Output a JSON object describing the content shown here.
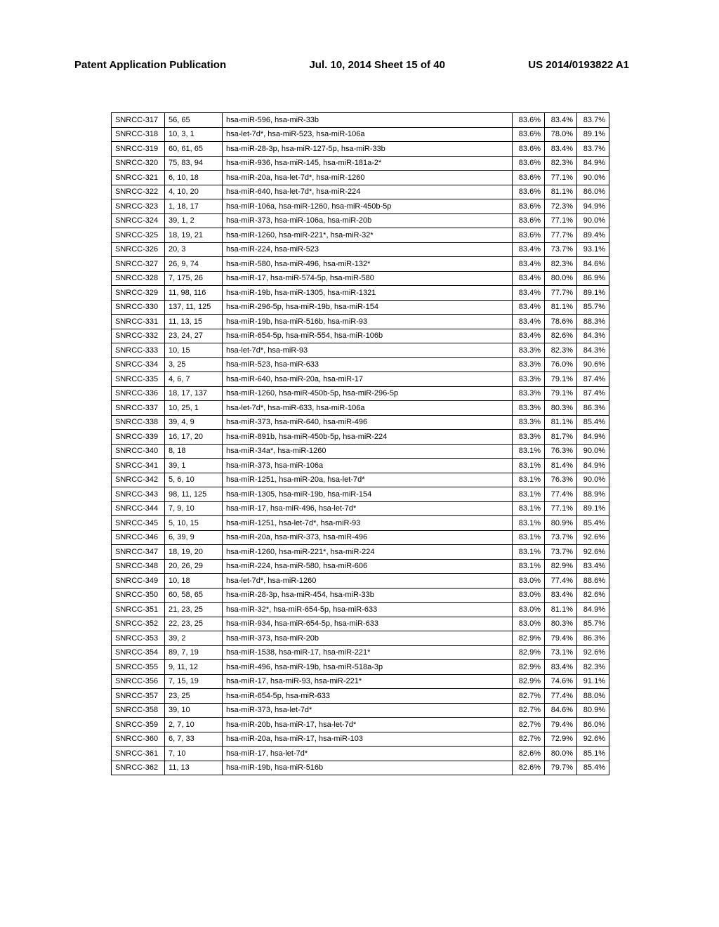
{
  "header": {
    "left": "Patent Application Publication",
    "center": "Jul. 10, 2014  Sheet 15 of 40",
    "right": "US 2014/0193822 A1"
  },
  "table": {
    "font_size": 11,
    "border_color": "#000000",
    "background_color": "#ffffff",
    "rows": [
      [
        "SNRCC-317",
        "56, 65",
        "hsa-miR-596, hsa-miR-33b",
        "83.6%",
        "83.4%",
        "83.7%"
      ],
      [
        "SNRCC-318",
        "10, 3, 1",
        "hsa-let-7d*, hsa-miR-523, hsa-miR-106a",
        "83.6%",
        "78.0%",
        "89.1%"
      ],
      [
        "SNRCC-319",
        "60, 61, 65",
        "hsa-miR-28-3p, hsa-miR-127-5p, hsa-miR-33b",
        "83.6%",
        "83.4%",
        "83.7%"
      ],
      [
        "SNRCC-320",
        "75, 83, 94",
        "hsa-miR-936, hsa-miR-145, hsa-miR-181a-2*",
        "83.6%",
        "82.3%",
        "84.9%"
      ],
      [
        "SNRCC-321",
        "6, 10, 18",
        "hsa-miR-20a, hsa-let-7d*, hsa-miR-1260",
        "83.6%",
        "77.1%",
        "90.0%"
      ],
      [
        "SNRCC-322",
        "4, 10, 20",
        "hsa-miR-640, hsa-let-7d*, hsa-miR-224",
        "83.6%",
        "81.1%",
        "86.0%"
      ],
      [
        "SNRCC-323",
        "1, 18, 17",
        "hsa-miR-106a, hsa-miR-1260, hsa-miR-450b-5p",
        "83.6%",
        "72.3%",
        "94.9%"
      ],
      [
        "SNRCC-324",
        "39, 1, 2",
        "hsa-miR-373, hsa-miR-106a, hsa-miR-20b",
        "83.6%",
        "77.1%",
        "90.0%"
      ],
      [
        "SNRCC-325",
        "18, 19, 21",
        "hsa-miR-1260, hsa-miR-221*, hsa-miR-32*",
        "83.6%",
        "77.7%",
        "89.4%"
      ],
      [
        "SNRCC-326",
        "20, 3",
        "hsa-miR-224, hsa-miR-523",
        "83.4%",
        "73.7%",
        "93.1%"
      ],
      [
        "SNRCC-327",
        "26, 9, 74",
        "hsa-miR-580, hsa-miR-496, hsa-miR-132*",
        "83.4%",
        "82.3%",
        "84.6%"
      ],
      [
        "SNRCC-328",
        "7, 175, 26",
        "hsa-miR-17, hsa-miR-574-5p, hsa-miR-580",
        "83.4%",
        "80.0%",
        "86.9%"
      ],
      [
        "SNRCC-329",
        "11, 98, 116",
        "hsa-miR-19b, hsa-miR-1305, hsa-miR-1321",
        "83.4%",
        "77.7%",
        "89.1%"
      ],
      [
        "SNRCC-330",
        "137, 11, 125",
        "hsa-miR-296-5p, hsa-miR-19b, hsa-miR-154",
        "83.4%",
        "81.1%",
        "85.7%"
      ],
      [
        "SNRCC-331",
        "11, 13, 15",
        "hsa-miR-19b, hsa-miR-516b, hsa-miR-93",
        "83.4%",
        "78.6%",
        "88.3%"
      ],
      [
        "SNRCC-332",
        "23, 24, 27",
        "hsa-miR-654-5p, hsa-miR-554, hsa-miR-106b",
        "83.4%",
        "82.6%",
        "84.3%"
      ],
      [
        "SNRCC-333",
        "10, 15",
        "hsa-let-7d*, hsa-miR-93",
        "83.3%",
        "82.3%",
        "84.3%"
      ],
      [
        "SNRCC-334",
        "3, 25",
        "hsa-miR-523, hsa-miR-633",
        "83.3%",
        "76.0%",
        "90.6%"
      ],
      [
        "SNRCC-335",
        "4, 6, 7",
        "hsa-miR-640, hsa-miR-20a, hsa-miR-17",
        "83.3%",
        "79.1%",
        "87.4%"
      ],
      [
        "SNRCC-336",
        "18, 17, 137",
        "hsa-miR-1260, hsa-miR-450b-5p, hsa-miR-296-5p",
        "83.3%",
        "79.1%",
        "87.4%"
      ],
      [
        "SNRCC-337",
        "10, 25, 1",
        "hsa-let-7d*, hsa-miR-633, hsa-miR-106a",
        "83.3%",
        "80.3%",
        "86.3%"
      ],
      [
        "SNRCC-338",
        "39, 4, 9",
        "hsa-miR-373, hsa-miR-640, hsa-miR-496",
        "83.3%",
        "81.1%",
        "85.4%"
      ],
      [
        "SNRCC-339",
        "16, 17, 20",
        "hsa-miR-891b, hsa-miR-450b-5p, hsa-miR-224",
        "83.3%",
        "81.7%",
        "84.9%"
      ],
      [
        "SNRCC-340",
        "8, 18",
        "hsa-miR-34a*, hsa-miR-1260",
        "83.1%",
        "76.3%",
        "90.0%"
      ],
      [
        "SNRCC-341",
        "39, 1",
        "hsa-miR-373, hsa-miR-106a",
        "83.1%",
        "81.4%",
        "84.9%"
      ],
      [
        "SNRCC-342",
        "5, 6, 10",
        "hsa-miR-1251, hsa-miR-20a, hsa-let-7d*",
        "83.1%",
        "76.3%",
        "90.0%"
      ],
      [
        "SNRCC-343",
        "98, 11, 125",
        "hsa-miR-1305, hsa-miR-19b, hsa-miR-154",
        "83.1%",
        "77.4%",
        "88.9%"
      ],
      [
        "SNRCC-344",
        "7, 9, 10",
        "hsa-miR-17, hsa-miR-496, hsa-let-7d*",
        "83.1%",
        "77.1%",
        "89.1%"
      ],
      [
        "SNRCC-345",
        "5, 10, 15",
        "hsa-miR-1251, hsa-let-7d*, hsa-miR-93",
        "83.1%",
        "80.9%",
        "85.4%"
      ],
      [
        "SNRCC-346",
        "6, 39, 9",
        "hsa-miR-20a, hsa-miR-373, hsa-miR-496",
        "83.1%",
        "73.7%",
        "92.6%"
      ],
      [
        "SNRCC-347",
        "18, 19, 20",
        "hsa-miR-1260, hsa-miR-221*, hsa-miR-224",
        "83.1%",
        "73.7%",
        "92.6%"
      ],
      [
        "SNRCC-348",
        "20, 26, 29",
        "hsa-miR-224, hsa-miR-580, hsa-miR-606",
        "83.1%",
        "82.9%",
        "83.4%"
      ],
      [
        "SNRCC-349",
        "10, 18",
        "hsa-let-7d*, hsa-miR-1260",
        "83.0%",
        "77.4%",
        "88.6%"
      ],
      [
        "SNRCC-350",
        "60, 58, 65",
        "hsa-miR-28-3p, hsa-miR-454, hsa-miR-33b",
        "83.0%",
        "83.4%",
        "82.6%"
      ],
      [
        "SNRCC-351",
        "21, 23, 25",
        "hsa-miR-32*, hsa-miR-654-5p, hsa-miR-633",
        "83.0%",
        "81.1%",
        "84.9%"
      ],
      [
        "SNRCC-352",
        "22, 23, 25",
        "hsa-miR-934, hsa-miR-654-5p, hsa-miR-633",
        "83.0%",
        "80.3%",
        "85.7%"
      ],
      [
        "SNRCC-353",
        "39, 2",
        "hsa-miR-373, hsa-miR-20b",
        "82.9%",
        "79.4%",
        "86.3%"
      ],
      [
        "SNRCC-354",
        "89, 7, 19",
        "hsa-miR-1538, hsa-miR-17, hsa-miR-221*",
        "82.9%",
        "73.1%",
        "92.6%"
      ],
      [
        "SNRCC-355",
        "9, 11, 12",
        "hsa-miR-496, hsa-miR-19b, hsa-miR-518a-3p",
        "82.9%",
        "83.4%",
        "82.3%"
      ],
      [
        "SNRCC-356",
        "7, 15, 19",
        "hsa-miR-17, hsa-miR-93, hsa-miR-221*",
        "82.9%",
        "74.6%",
        "91.1%"
      ],
      [
        "SNRCC-357",
        "23, 25",
        "hsa-miR-654-5p, hsa-miR-633",
        "82.7%",
        "77.4%",
        "88.0%"
      ],
      [
        "SNRCC-358",
        "39, 10",
        "hsa-miR-373, hsa-let-7d*",
        "82.7%",
        "84.6%",
        "80.9%"
      ],
      [
        "SNRCC-359",
        "2, 7, 10",
        "hsa-miR-20b, hsa-miR-17, hsa-let-7d*",
        "82.7%",
        "79.4%",
        "86.0%"
      ],
      [
        "SNRCC-360",
        "6, 7, 33",
        "hsa-miR-20a, hsa-miR-17, hsa-miR-103",
        "82.7%",
        "72.9%",
        "92.6%"
      ],
      [
        "SNRCC-361",
        "7, 10",
        "hsa-miR-17, hsa-let-7d*",
        "82.6%",
        "80.0%",
        "85.1%"
      ],
      [
        "SNRCC-362",
        "11, 13",
        "hsa-miR-19b, hsa-miR-516b",
        "82.6%",
        "79.7%",
        "85.4%"
      ]
    ]
  }
}
